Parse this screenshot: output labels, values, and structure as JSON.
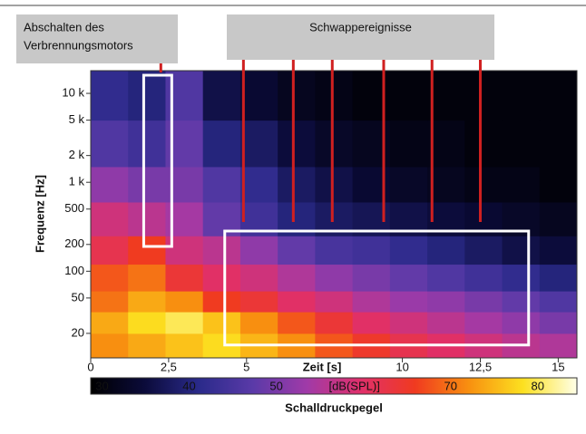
{
  "chart_data": {
    "type": "heatmap",
    "x_label": "Zeit [s]",
    "y_label": "Frequenz [Hz]",
    "xlim": [
      0,
      15.6
    ],
    "xticks": [
      0,
      {
        "value": 2.5,
        "label": "2,5"
      },
      5,
      10,
      {
        "value": 12.5,
        "label": "12,5"
      },
      15
    ],
    "ylim": [
      10.6,
      18000
    ],
    "y_log": true,
    "yticks": [
      20,
      50,
      100,
      200,
      500,
      {
        "value": 1000,
        "label": "1 k"
      },
      {
        "value": 2000,
        "label": "2 k"
      },
      {
        "value": 5000,
        "label": "5 k"
      },
      {
        "value": 10000,
        "label": "10 k"
      }
    ],
    "xbins": [
      0,
      1.2,
      2.4,
      3.6,
      4.8,
      6,
      7.2,
      8.4,
      9.6,
      10.8,
      12,
      13.2,
      14.4,
      15.6
    ],
    "ybins": [
      10.6,
      20,
      35,
      60,
      120,
      250,
      600,
      1500,
      5000,
      18000
    ],
    "z": [
      [
        72,
        74,
        76,
        78,
        75,
        72,
        68,
        65,
        62,
        60,
        58,
        56,
        55
      ],
      [
        74,
        78,
        80,
        76,
        72,
        68,
        64,
        60,
        58,
        56,
        54,
        52,
        50
      ],
      [
        70,
        74,
        72,
        66,
        64,
        60,
        58,
        55,
        53,
        52,
        50,
        48,
        46
      ],
      [
        68,
        70,
        64,
        60,
        58,
        55,
        52,
        50,
        48,
        46,
        44,
        42,
        40
      ],
      [
        62,
        66,
        58,
        56,
        52,
        48,
        45,
        44,
        42,
        40,
        38,
        36,
        35
      ],
      [
        58,
        56,
        54,
        48,
        44,
        40,
        38,
        37,
        36,
        35,
        34,
        33,
        32
      ],
      [
        52,
        50,
        50,
        46,
        42,
        38,
        36,
        34,
        33,
        32,
        31,
        31,
        30
      ],
      [
        46,
        44,
        48,
        40,
        38,
        35,
        33,
        32,
        31,
        31,
        30,
        30,
        30
      ],
      [
        42,
        40,
        46,
        36,
        34,
        32,
        31,
        30,
        30,
        30,
        30,
        30,
        30
      ]
    ],
    "colormap": [
      "#000000",
      "#0b0b3a",
      "#2a2a8a",
      "#5a3aa8",
      "#a03aa8",
      "#e0306a",
      "#f03a20",
      "#f89010",
      "#fce020",
      "#ffffe8"
    ],
    "colorbar": {
      "label": "Schalldruckpegel",
      "unit": "[dB(SPL)]",
      "clim": [
        28.7,
        84.5
      ],
      "ticks": [
        30,
        40,
        50,
        70,
        80
      ]
    },
    "annotations": [
      {
        "lines": [
          "Abschalten des",
          "Verbrennungsmotors"
        ],
        "event_times": [
          2.25
        ],
        "box": {
          "x": [
            1.7,
            2.6
          ],
          "y": [
            190,
            16000
          ]
        }
      },
      {
        "lines": [
          "Schwappereignisse"
        ],
        "event_times": [
          4.9,
          6.5,
          7.75,
          9.4,
          10.95,
          12.5
        ],
        "box": {
          "x": [
            4.3,
            14.05
          ],
          "y": [
            14.8,
            283
          ]
        }
      }
    ],
    "event_color": "#d02020"
  }
}
